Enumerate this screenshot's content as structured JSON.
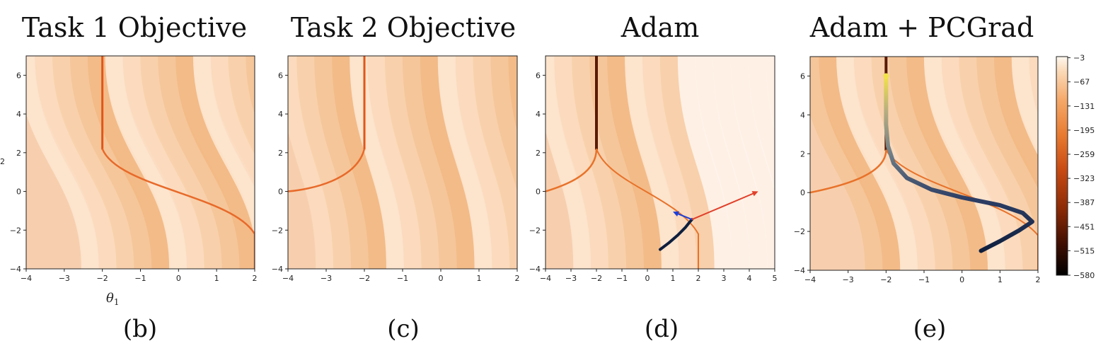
{
  "chart_data": [
    {
      "type": "heatmap",
      "title": "Task 1 Objective",
      "panel_label": "(b)",
      "xlabel": "θ",
      "xlabel_sub": "1",
      "ylabel_fragment": "2",
      "xlim": [
        -4,
        2
      ],
      "ylim": [
        -4,
        7
      ],
      "xticks": [
        -4,
        -3,
        -2,
        -1,
        0,
        1,
        2
      ],
      "yticks": [
        -4,
        -2,
        0,
        2,
        4,
        6
      ],
      "xtick_labels": [
        "−4",
        "−3",
        "−2",
        "−1",
        "0",
        "1",
        "2"
      ],
      "ytick_labels": [
        "−4",
        "−2",
        "0",
        "2",
        "4",
        "6"
      ],
      "valley": {
        "upper_x": -2,
        "lower_x": 2,
        "cross_x": 0,
        "cross_y": 0
      }
    },
    {
      "type": "heatmap",
      "title": "Task 2 Objective",
      "panel_label": "(c)",
      "xlim": [
        -4,
        2
      ],
      "ylim": [
        -4,
        7
      ],
      "xticks": [
        -4,
        -3,
        -2,
        -1,
        0,
        1,
        2
      ],
      "yticks": [
        -4,
        -2,
        0,
        2,
        4,
        6
      ],
      "xtick_labels": [
        "−4",
        "−3",
        "−2",
        "−1",
        "0",
        "1",
        "2"
      ],
      "ytick_labels": [
        "−4",
        "−2",
        "0",
        "2",
        "4",
        "6"
      ],
      "valley": {
        "upper_x": -2,
        "left_y": 0
      }
    },
    {
      "type": "heatmap",
      "title": "Adam",
      "panel_label": "(d)",
      "xlim": [
        -4,
        5
      ],
      "ylim": [
        -4,
        7
      ],
      "xticks": [
        -4,
        -3,
        -2,
        -1,
        0,
        1,
        2,
        3,
        4,
        5
      ],
      "yticks": [
        -4,
        -2,
        0,
        2,
        4,
        6
      ],
      "xtick_labels": [
        "−4",
        "−3",
        "−2",
        "−1",
        "0",
        "1",
        "2",
        "3",
        "4",
        "5"
      ],
      "ytick_labels": [
        "−4",
        "−2",
        "0",
        "2",
        "4",
        "6"
      ],
      "trajectory": {
        "x": [
          0.5,
          0.85,
          1.2,
          1.5,
          1.65,
          1.75
        ],
        "y": [
          -3.0,
          -2.65,
          -2.25,
          -1.85,
          -1.6,
          -1.45
        ]
      },
      "arrows": [
        {
          "from": [
            1.75,
            -1.45
          ],
          "to": [
            1.0,
            -1.05
          ],
          "color": "#1f3fd6"
        },
        {
          "from": [
            1.75,
            -1.45
          ],
          "to": [
            4.35,
            0.0
          ],
          "color": "#e0402a"
        }
      ]
    },
    {
      "type": "heatmap",
      "title": "Adam + PCGrad",
      "panel_label": "(e)",
      "xlim": [
        -4,
        2
      ],
      "ylim": [
        -4,
        7
      ],
      "xticks": [
        -4,
        -3,
        -2,
        -1,
        0,
        1,
        2
      ],
      "yticks": [
        -4,
        -2,
        0,
        2,
        4,
        6
      ],
      "xtick_labels": [
        "−4",
        "−3",
        "−2",
        "−1",
        "0",
        "1",
        "2"
      ],
      "ytick_labels": [
        "−4",
        "−2",
        "0",
        "2",
        "4",
        "6"
      ],
      "trajectory": {
        "x": [
          0.5,
          1.0,
          1.5,
          1.85,
          1.6,
          1.0,
          0.0,
          -0.8,
          -1.45,
          -1.8,
          -1.95,
          -2.0,
          -2.0,
          -2.0
        ],
        "y": [
          -3.0,
          -2.5,
          -1.95,
          -1.5,
          -1.05,
          -0.65,
          -0.25,
          0.15,
          0.75,
          1.5,
          2.4,
          3.5,
          5.0,
          6.0
        ]
      },
      "colorbar": {
        "ticks": [
          -3,
          -67,
          -131,
          -195,
          -259,
          -323,
          -387,
          -451,
          -515,
          -580
        ],
        "tick_labels": [
          "−3",
          "−67",
          "−131",
          "−195",
          "−259",
          "−323",
          "−387",
          "−451",
          "−515",
          "−580"
        ],
        "range": [
          -580,
          0
        ],
        "colors": [
          "#fff7ef",
          "#fbd9b4",
          "#f5a565",
          "#e8722a",
          "#c84a12",
          "#8a2a06",
          "#4a1203",
          "#000000"
        ]
      }
    }
  ]
}
